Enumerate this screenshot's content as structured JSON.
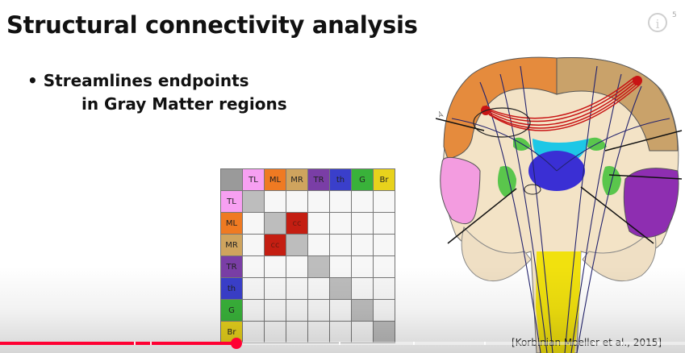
{
  "slide": {
    "title": "Structural connectivity analysis",
    "bullet_line1": "• Streamlines endpoints",
    "bullet_line2": "in Gray Matter regions",
    "info_icon": "i",
    "slide_number": "5",
    "citation": "[Korbinian Moeller et al., 2015]"
  },
  "matrix": {
    "regions": [
      {
        "label": "TL",
        "color": "#f7a0f2"
      },
      {
        "label": "ML",
        "color": "#ef7a22"
      },
      {
        "label": "MR",
        "color": "#cfa45e"
      },
      {
        "label": "TR",
        "color": "#7a3ea6"
      },
      {
        "label": "th",
        "color": "#3a3fcb"
      },
      {
        "label": "G",
        "color": "#39b23a"
      },
      {
        "label": "Br",
        "color": "#e8d21c"
      }
    ],
    "connections": [
      {
        "row": 1,
        "col": 2,
        "label": "cc"
      },
      {
        "row": 2,
        "col": 1,
        "label": "cc"
      }
    ],
    "cc_color": "#c41e12",
    "diagonal_color": "#bdbdbd"
  },
  "video": {
    "progress": 0.345,
    "progress_color": "#ff0033"
  },
  "brain_icon": "coronal-brain-section-icon"
}
